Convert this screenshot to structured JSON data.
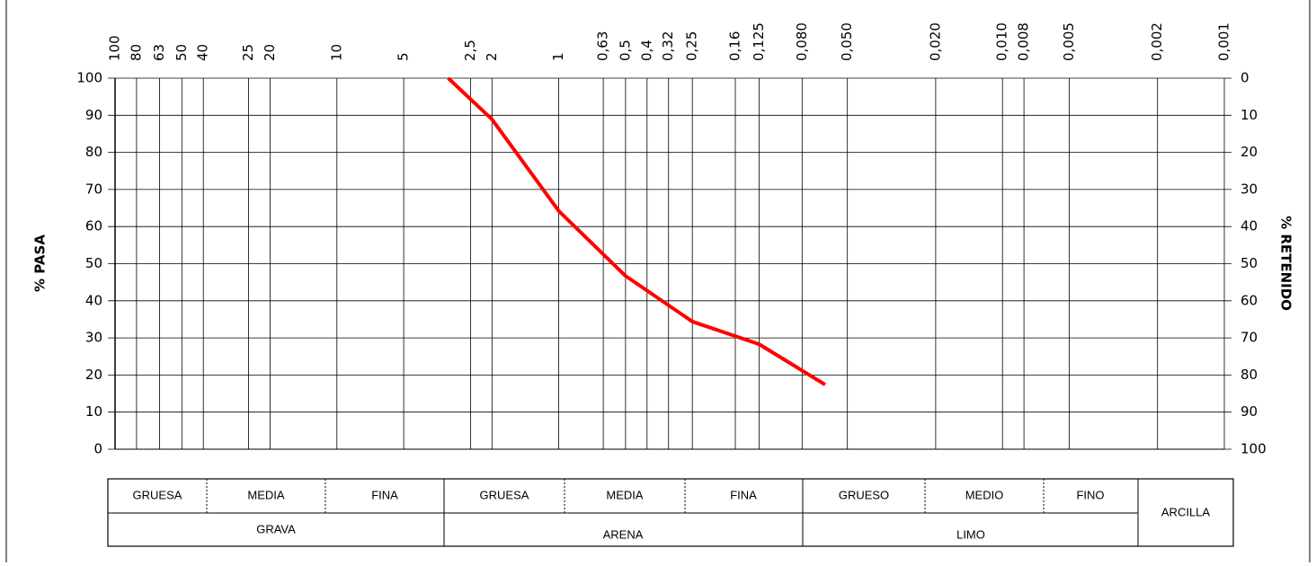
{
  "chart_data": {
    "type": "line",
    "ylabel": "% PASA",
    "y2label": "% RETENIDO",
    "xscale": "log",
    "xlim": [
      100,
      0.001
    ],
    "xticks": [
      100,
      80,
      63,
      50,
      40,
      25,
      20,
      10,
      5,
      {
        "value": 2.5,
        "label": "2,5"
      },
      2,
      1,
      {
        "value": 0.63,
        "label": "0,63"
      },
      {
        "value": 0.5,
        "label": "0,5"
      },
      {
        "value": 0.4,
        "label": "0,4"
      },
      {
        "value": 0.32,
        "label": "0,32"
      },
      {
        "value": 0.25,
        "label": "0,25"
      },
      {
        "value": 0.16,
        "label": "0,16"
      },
      {
        "value": 0.125,
        "label": "0,125"
      },
      {
        "value": 0.08,
        "label": "0,080"
      },
      {
        "value": 0.05,
        "label": "0,050"
      },
      {
        "value": 0.02,
        "label": "0,020"
      },
      {
        "value": 0.01,
        "label": "0,010"
      },
      {
        "value": 0.008,
        "label": "0,008"
      },
      {
        "value": 0.005,
        "label": "0,005"
      },
      {
        "value": 0.002,
        "label": "0,002"
      },
      {
        "value": 0.001,
        "label": "0,001"
      }
    ],
    "ylim": [
      0,
      100
    ],
    "yticks": [
      0,
      10,
      20,
      30,
      40,
      50,
      60,
      70,
      80,
      90,
      100
    ],
    "y2lim": [
      100,
      0
    ],
    "y2ticks": [
      100,
      90,
      80,
      70,
      60,
      50,
      40,
      30,
      20,
      10,
      0
    ],
    "grid": true,
    "x": [
      3.15,
      2,
      1,
      0.5,
      0.25,
      0.125,
      0.063
    ],
    "series": [
      {
        "color": "#ff0000",
        "values": [
          100,
          88.9,
          64.2,
          46.7,
          34.4,
          28.3,
          17.4
        ]
      }
    ]
  },
  "classification": {
    "sub": [
      "GRUESA",
      "MEDIA",
      "FINA",
      "GRUESA",
      "MEDIA",
      "FINA",
      "GRUESO",
      "MEDIO",
      "FINO"
    ],
    "main": [
      "GRAVA",
      "ARENA",
      "LIMO",
      "ARCILLA"
    ]
  }
}
